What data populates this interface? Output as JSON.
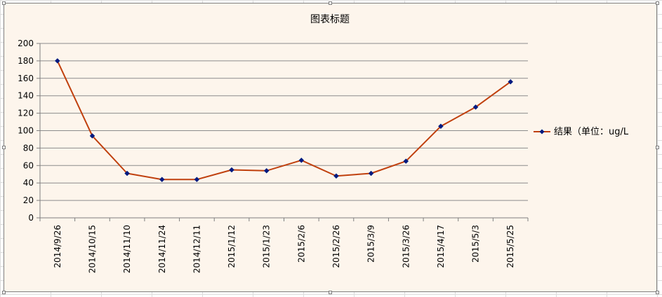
{
  "chart_data": {
    "type": "line",
    "title": "图表标题",
    "xlabel": "",
    "ylabel": "",
    "categories": [
      "2014/9/26",
      "2014/10/15",
      "2014/11/10",
      "2014/11/24",
      "2014/12/11",
      "2015/1/12",
      "2015/1/23",
      "2015/2/6",
      "2015/2/26",
      "2015/3/9",
      "2015/3/26",
      "2015/4/17",
      "2015/5/3",
      "2015/5/25"
    ],
    "series": [
      {
        "name": "结果（单位：ug/L",
        "values": [
          180,
          94,
          51,
          44,
          44,
          55,
          54,
          66,
          48,
          51,
          65,
          105,
          127,
          156
        ],
        "color": "#c0400e",
        "marker_color": "#001a80"
      }
    ],
    "ylim": [
      0,
      200
    ],
    "y_ticks": [
      0,
      20,
      40,
      60,
      80,
      100,
      120,
      140,
      160,
      180,
      200
    ],
    "y_tick_labels": [
      "0",
      "20",
      "40",
      "60",
      "80",
      "100",
      "120",
      "140",
      "160",
      "180",
      "200"
    ],
    "grid": true,
    "gridline_color": "#8c8c8c",
    "legend_position": "right",
    "plot_background": "#fdf5ec"
  }
}
